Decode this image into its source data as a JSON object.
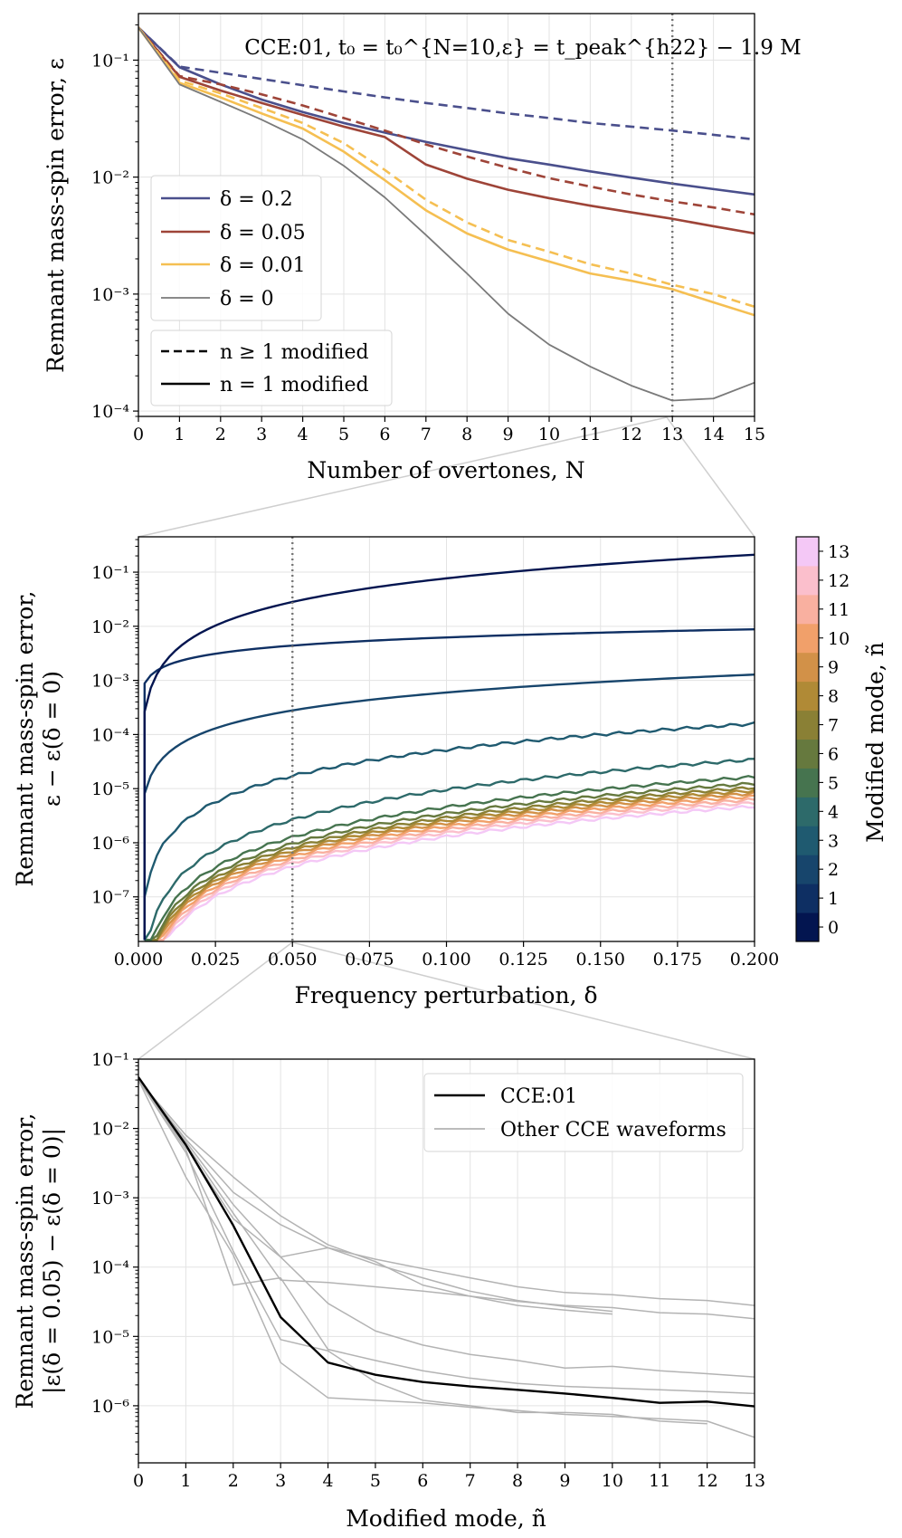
{
  "chart_data": [
    {
      "id": "top",
      "type": "line",
      "title": "CCE:01, t₀ = t₀^{N=10,ε} = t_peak^{h22} − 1.9 M",
      "xlabel": "Number of overtones, N",
      "ylabel": "Remnant mass-spin error, ε",
      "xlim": [
        0,
        15
      ],
      "ylim": [
        9e-05,
        0.25
      ],
      "yscale": "log",
      "xticks": [
        0,
        1,
        2,
        3,
        4,
        5,
        6,
        7,
        8,
        9,
        10,
        11,
        12,
        13,
        14,
        15
      ],
      "xtick_labels": [
        "0",
        "1",
        "2",
        "3",
        "4",
        "5",
        "6",
        "7",
        "8",
        "9",
        "10",
        "11",
        "12",
        "13",
        "14",
        "15"
      ],
      "yticks": [
        0.0001,
        0.001,
        0.01,
        0.1
      ],
      "ytick_labels": [
        "10⁻⁴",
        "10⁻³",
        "10⁻²",
        "10⁻¹"
      ],
      "vline": 13,
      "legend_delta": [
        "δ = 0.2",
        "δ = 0.05",
        "δ = 0.01",
        "δ = 0"
      ],
      "legend_style": [
        "n ≥ 1 modified",
        "n = 1 modified"
      ],
      "series": [
        {
          "name": "δ = 0.2, n ≥ 1 modified",
          "color": "#4a4f8c",
          "dash": true,
          "x": [
            0,
            1,
            2,
            3,
            4,
            5,
            6,
            7,
            8,
            9,
            10,
            11,
            12,
            13,
            14,
            15
          ],
          "y": [
            0.19,
            0.088,
            0.078,
            0.069,
            0.061,
            0.054,
            0.048,
            0.043,
            0.039,
            0.035,
            0.032,
            0.029,
            0.027,
            0.025,
            0.023,
            0.021
          ]
        },
        {
          "name": "δ = 0.2, n = 1 modified",
          "color": "#4a4f8c",
          "dash": false,
          "x": [
            0,
            1,
            2,
            3,
            4,
            5,
            6,
            7,
            8,
            9,
            10,
            11,
            12,
            13,
            14,
            15
          ],
          "y": [
            0.19,
            0.087,
            0.062,
            0.046,
            0.036,
            0.029,
            0.024,
            0.02,
            0.017,
            0.0145,
            0.0128,
            0.0112,
            0.0099,
            0.0088,
            0.0079,
            0.0071
          ]
        },
        {
          "name": "δ = 0.05, n ≥ 1 modified",
          "color": "#9e4438",
          "dash": true,
          "x": [
            0,
            1,
            2,
            3,
            4,
            5,
            6,
            7,
            8,
            9,
            10,
            11,
            12,
            13,
            14,
            15
          ],
          "y": [
            0.19,
            0.073,
            0.062,
            0.051,
            0.041,
            0.032,
            0.025,
            0.019,
            0.015,
            0.012,
            0.0098,
            0.0083,
            0.0071,
            0.0062,
            0.0055,
            0.0048
          ]
        },
        {
          "name": "δ = 0.05, n = 1 modified",
          "color": "#9e4438",
          "dash": false,
          "x": [
            0,
            1,
            2,
            3,
            4,
            5,
            6,
            7,
            8,
            9,
            10,
            11,
            12,
            13,
            14,
            15
          ],
          "y": [
            0.19,
            0.072,
            0.055,
            0.043,
            0.034,
            0.027,
            0.022,
            0.0128,
            0.0097,
            0.0078,
            0.0066,
            0.0057,
            0.005,
            0.0044,
            0.0038,
            0.0033
          ]
        },
        {
          "name": "δ = 0.01, n ≥ 1 modified",
          "color": "#f5bf52",
          "dash": true,
          "x": [
            0,
            1,
            2,
            3,
            4,
            5,
            6,
            7,
            8,
            9,
            10,
            11,
            12,
            13,
            14,
            15
          ],
          "y": [
            0.19,
            0.067,
            0.052,
            0.039,
            0.029,
            0.0195,
            0.0115,
            0.0064,
            0.0041,
            0.0029,
            0.0023,
            0.0018,
            0.0015,
            0.0012,
            0.001,
            0.00078
          ]
        },
        {
          "name": "δ = 0.01, n = 1 modified",
          "color": "#f5bf52",
          "dash": false,
          "x": [
            0,
            1,
            2,
            3,
            4,
            5,
            6,
            7,
            8,
            9,
            10,
            11,
            12,
            13,
            14,
            15
          ],
          "y": [
            0.19,
            0.064,
            0.048,
            0.035,
            0.026,
            0.0165,
            0.0094,
            0.0052,
            0.0033,
            0.0024,
            0.0019,
            0.0015,
            0.0013,
            0.0011,
            0.00085,
            0.00066
          ]
        },
        {
          "name": "δ = 0",
          "color": "#7a7a7a",
          "dash": false,
          "x": [
            0,
            1,
            2,
            3,
            4,
            5,
            6,
            7,
            8,
            9,
            10,
            11,
            12,
            13,
            14,
            15
          ],
          "y": [
            0.19,
            0.062,
            0.044,
            0.031,
            0.021,
            0.0125,
            0.0067,
            0.0032,
            0.0015,
            0.00068,
            0.00037,
            0.00024,
            0.000165,
            0.000123,
            0.000128,
            0.000175
          ]
        }
      ]
    },
    {
      "id": "middle",
      "type": "line",
      "xlabel": "Frequency perturbation, δ",
      "ylabel_lines": [
        "Remnant mass-spin error,",
        "ε − ε(δ = 0)"
      ],
      "xlim": [
        0,
        0.2
      ],
      "ylim": [
        1.5e-08,
        0.45
      ],
      "yscale": "log",
      "xticks": [
        0,
        0.025,
        0.05,
        0.075,
        0.1,
        0.125,
        0.15,
        0.175,
        0.2
      ],
      "xtick_labels": [
        "0.000",
        "0.025",
        "0.050",
        "0.075",
        "0.100",
        "0.125",
        "0.150",
        "0.175",
        "0.200"
      ],
      "yticks": [
        1e-07,
        1e-06,
        1e-05,
        0.0001,
        0.001,
        0.01,
        0.1
      ],
      "ytick_labels": [
        "10⁻⁷",
        "10⁻⁶",
        "10⁻⁵",
        "10⁻⁴",
        "10⁻³",
        "10⁻²",
        "10⁻¹"
      ],
      "vline": 0.05,
      "curve_model": "y = a * (delta/0.2)^p",
      "colorbar": {
        "label": "Modified mode, ñ",
        "ticks": [
          "0",
          "1",
          "2",
          "3",
          "4",
          "5",
          "6",
          "7",
          "8",
          "9",
          "10",
          "11",
          "12",
          "13"
        ],
        "colors": [
          "#031550",
          "#0e2f63",
          "#17456c",
          "#1f5a70",
          "#2d6a6a",
          "#46744f",
          "#66793e",
          "#8a8035",
          "#b08a36",
          "#d29148",
          "#f1a06a",
          "#f9b0a0",
          "#fbbfcc",
          "#f4c8f6"
        ]
      },
      "series": [
        {
          "name": "ñ = 0",
          "amp": 0.21,
          "p": 1.45
        },
        {
          "name": "ñ = 1",
          "amp": 0.0088,
          "p": 0.5
        },
        {
          "name": "ñ = 2",
          "amp": 0.00128,
          "p": 1.1
        },
        {
          "name": "ñ = 3",
          "amp": 0.000158,
          "p": 1.6
        },
        {
          "name": "ñ = 4",
          "amp": 3.45e-05,
          "p": 1.85
        },
        {
          "name": "ñ = 5",
          "amp": 1.65e-05,
          "p": 1.85
        },
        {
          "name": "ñ = 6",
          "amp": 1.25e-05,
          "p": 1.85
        },
        {
          "name": "ñ = 7",
          "amp": 1.05e-05,
          "p": 1.85
        },
        {
          "name": "ñ = 8",
          "amp": 9.2e-06,
          "p": 1.85
        },
        {
          "name": "ñ = 9",
          "amp": 8.2e-06,
          "p": 1.85
        },
        {
          "name": "ñ = 10",
          "amp": 7.2e-06,
          "p": 1.85
        },
        {
          "name": "ñ = 11",
          "amp": 6.3e-06,
          "p": 1.85
        },
        {
          "name": "ñ = 12",
          "amp": 5.5e-06,
          "p": 1.85
        },
        {
          "name": "ñ = 13",
          "amp": 4.7e-06,
          "p": 1.85
        }
      ]
    },
    {
      "id": "bottom",
      "type": "line",
      "xlabel": "Modified mode, ñ",
      "ylabel_lines": [
        "Remnant mass-spin error,",
        "|ε(δ = 0.05) − ε(δ = 0)|"
      ],
      "xlim": [
        0,
        13
      ],
      "ylim": [
        1.5e-07,
        0.1
      ],
      "yscale": "log",
      "xticks": [
        0,
        1,
        2,
        3,
        4,
        5,
        6,
        7,
        8,
        9,
        10,
        11,
        12,
        13
      ],
      "xtick_labels": [
        "0",
        "1",
        "2",
        "3",
        "4",
        "5",
        "6",
        "7",
        "8",
        "9",
        "10",
        "11",
        "12",
        "13"
      ],
      "yticks": [
        1e-06,
        1e-05,
        0.0001,
        0.001,
        0.01,
        0.1
      ],
      "ytick_labels": [
        "10⁻⁶",
        "10⁻⁵",
        "10⁻⁴",
        "10⁻³",
        "10⁻²",
        "10⁻¹"
      ],
      "legend": [
        "CCE:01",
        "Other CCE waveforms"
      ],
      "series": [
        {
          "name": "CCE:01",
          "color": "#000000",
          "width": 2.4,
          "x": [
            0,
            1,
            2,
            3,
            4,
            5,
            6,
            7,
            8,
            9,
            10,
            11,
            12,
            13
          ],
          "y": [
            0.055,
            0.0058,
            0.0004,
            1.9e-05,
            4.2e-06,
            2.8e-06,
            2.2e-06,
            1.9e-06,
            1.7e-06,
            1.5e-06,
            1.3e-06,
            1.1e-06,
            1.15e-06,
            9.8e-07
          ]
        },
        {
          "name": "Other CCE waveforms",
          "color": "#b3b3b3",
          "width": 1.5,
          "x": [
            0,
            1,
            2,
            3,
            4,
            5,
            6,
            7,
            8,
            9,
            10
          ],
          "y": [
            0.05,
            0.008,
            0.002,
            0.00055,
            0.00021,
            0.00012,
            5.5e-05,
            3.8e-05,
            2.8e-05,
            2.4e-05,
            2.1e-05
          ]
        },
        {
          "name": "Other CCE waveforms",
          "color": "#b3b3b3",
          "width": 1.5,
          "x": [
            0,
            1,
            2,
            3,
            4,
            5,
            6,
            7,
            8,
            9,
            10,
            11,
            12,
            13
          ],
          "y": [
            0.05,
            0.007,
            0.0012,
            0.00041,
            0.00019,
            0.00013,
            9.5e-05,
            7e-05,
            5.2e-05,
            4.3e-05,
            4e-05,
            3.5e-05,
            3.3e-05,
            2.8e-05
          ]
        },
        {
          "name": "Other CCE waveforms",
          "color": "#b3b3b3",
          "width": 1.5,
          "x": [
            0,
            1,
            2,
            3,
            4,
            5,
            6,
            7,
            8,
            9,
            10
          ],
          "y": [
            0.05,
            0.0065,
            0.0008,
            0.00014,
            0.00019,
            0.00011,
            7e-05,
            4.5e-05,
            3.3e-05,
            2.7e-05,
            2.3e-05
          ]
        },
        {
          "name": "Other CCE waveforms",
          "color": "#b3b3b3",
          "width": 1.5,
          "x": [
            0,
            1,
            2,
            3,
            4,
            5,
            6,
            7,
            8,
            9,
            10,
            11,
            12,
            13
          ],
          "y": [
            0.05,
            0.006,
            0.0006,
            6.5e-05,
            6e-05,
            5.2e-05,
            4.5e-05,
            3.8e-05,
            3.2e-05,
            2.8e-05,
            2.6e-05,
            2.2e-05,
            2.1e-05,
            1.8e-05
          ]
        },
        {
          "name": "Other CCE waveforms",
          "color": "#b3b3b3",
          "width": 1.5,
          "x": [
            0,
            1,
            2,
            3,
            4,
            5,
            6,
            7,
            8,
            9,
            10,
            11,
            12,
            13
          ],
          "y": [
            0.05,
            0.0055,
            0.0005,
            0.00014,
            3e-05,
            1.2e-05,
            7.5e-06,
            5.5e-06,
            4.5e-06,
            3.5e-06,
            3.7e-06,
            3.2e-06,
            2.9e-06,
            2.6e-06
          ]
        },
        {
          "name": "Other CCE waveforms",
          "color": "#b3b3b3",
          "width": 1.5,
          "x": [
            0,
            1,
            2,
            3,
            4,
            5,
            6,
            7,
            8,
            9,
            10,
            11,
            12,
            13
          ],
          "y": [
            0.05,
            0.005,
            5.5e-05,
            7e-05,
            6.5e-06,
            4.5e-06,
            3.2e-06,
            2.5e-06,
            2.1e-06,
            1.9e-06,
            1.8e-06,
            1.7e-06,
            1.6e-06,
            1.5e-06
          ]
        },
        {
          "name": "Other CCE waveforms",
          "color": "#b3b3b3",
          "width": 1.5,
          "x": [
            0,
            1,
            2,
            3,
            4,
            5,
            6,
            7,
            8,
            9,
            10,
            11,
            12
          ],
          "y": [
            0.05,
            0.0045,
            0.00017,
            9e-06,
            6.2e-06,
            2.2e-06,
            1.2e-06,
            1e-06,
            8e-07,
            8e-07,
            7.5e-07,
            6e-07,
            5.5e-07
          ]
        },
        {
          "name": "Other CCE waveforms",
          "color": "#b3b3b3",
          "width": 1.5,
          "x": [
            0,
            1,
            2,
            3,
            4,
            5,
            6,
            7,
            8,
            9,
            10,
            11,
            12,
            13
          ],
          "y": [
            0.05,
            0.002,
            0.00015,
            4.2e-06,
            1.3e-06,
            1.2e-06,
            1.1e-06,
            9.5e-07,
            8.5e-07,
            7.5e-07,
            7e-07,
            6.5e-07,
            6e-07,
            3.5e-07
          ]
        }
      ]
    }
  ]
}
